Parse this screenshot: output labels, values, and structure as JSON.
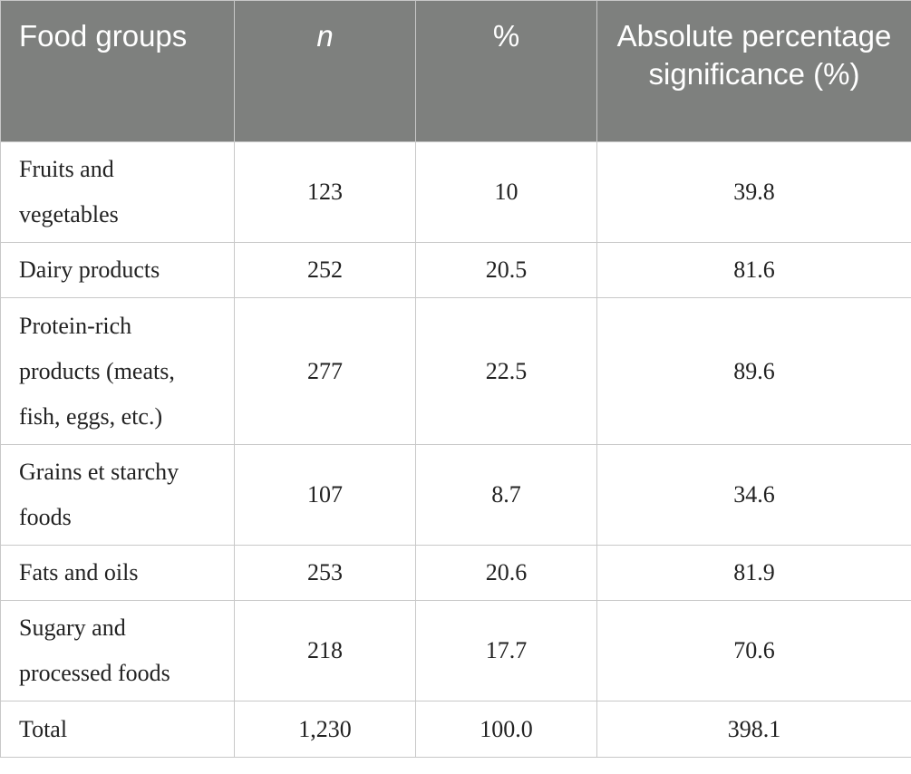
{
  "table": {
    "header": [
      "Food groups",
      "n",
      "%",
      "Absolute percentage significance (%)"
    ],
    "rows": [
      [
        "Fruits and vegetables",
        "123",
        "10",
        "39.8"
      ],
      [
        "Dairy products",
        "252",
        "20.5",
        "81.6"
      ],
      [
        "Protein-rich products (meats, fish, eggs, etc.)",
        "277",
        "22.5",
        "89.6"
      ],
      [
        "Grains et starchy foods",
        "107",
        "8.7",
        "34.6"
      ],
      [
        "Fats and oils",
        "253",
        "20.6",
        "81.9"
      ],
      [
        "Sugary and processed foods",
        "218",
        "17.7",
        "70.6"
      ],
      [
        "Total",
        "1,230",
        "100.0",
        "398.1"
      ]
    ]
  }
}
